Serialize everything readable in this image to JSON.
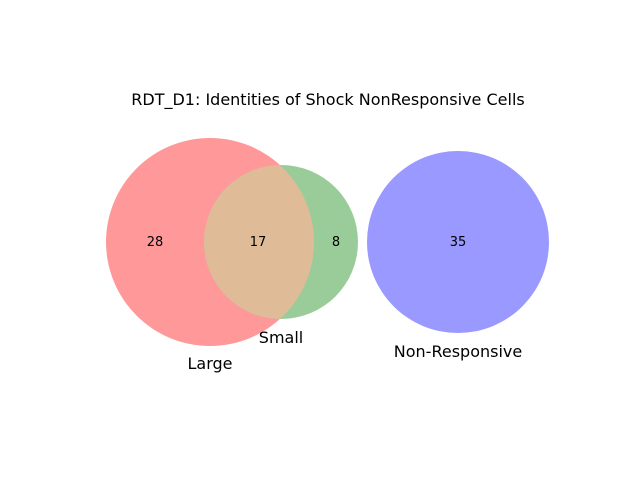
{
  "figure": {
    "title": "RDT_D1: Identities of Shock NonResponsive Cells"
  },
  "sets": {
    "large": {
      "label": "Large",
      "only_count": "28",
      "color": "#ff9999"
    },
    "small": {
      "label": "Small",
      "only_count": "8",
      "color": "#99cc99"
    },
    "large_small_overlap": {
      "count": "17",
      "color": "#e0bb98"
    },
    "non_responsive": {
      "label": "Non-Responsive",
      "count": "35",
      "color": "#9999ff"
    }
  }
}
